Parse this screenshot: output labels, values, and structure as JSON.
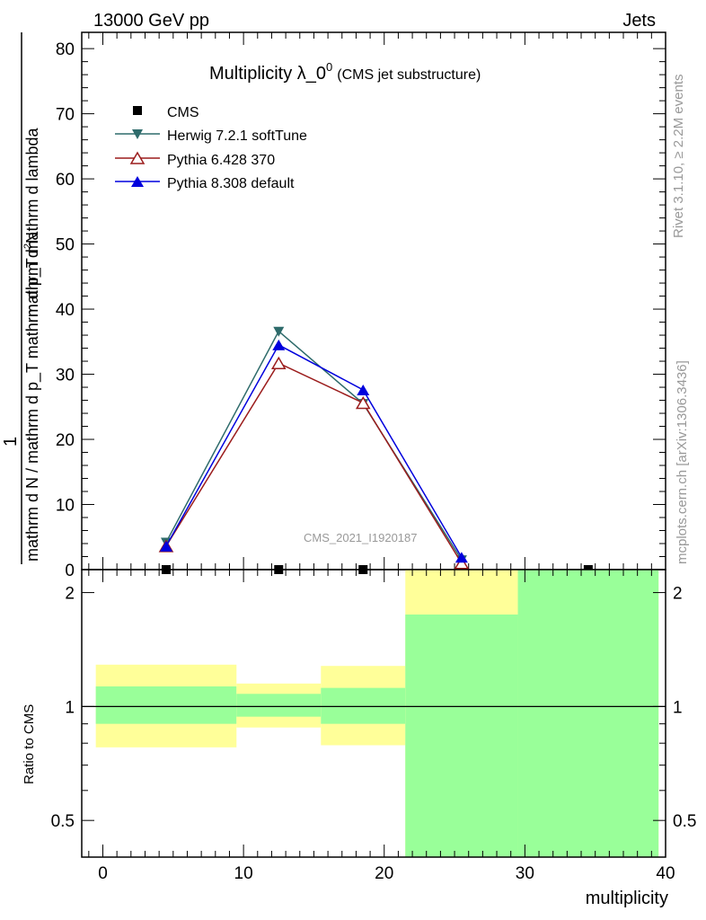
{
  "header": {
    "left": "13000 GeV pp",
    "right": "Jets"
  },
  "title": {
    "main": "Multiplicity λ_0",
    "superscript": "0",
    "sub": "(CMS jet substructure)"
  },
  "side_labels": {
    "rivet": "Rivet 3.1.10, ≥ 2.2M events",
    "mcplots": "mcplots.cern.ch [arXiv:1306.3436]"
  },
  "watermark": "CMS_2021_I1920187",
  "ylabel": {
    "prefix": "1",
    "numerator_small": "mathrm d",
    "numerator_sup": "2",
    "numerator_end": "N",
    "denominator_text": "mathrm d N / mathrm d p_T mathrm d p_T mathrm d lambda"
  },
  "ratio_ylabel": "Ratio to CMS",
  "xlabel": "multiplicity",
  "colors": {
    "herwig": "#2e6b6b",
    "pythia6": "#9b1c1c",
    "pythia8": "#0000dd",
    "band_yellow": "#ffff99",
    "band_green": "#99ff99",
    "cms": "#000000"
  },
  "chart_data": [
    {
      "type": "line",
      "title": "Multiplicity λ_0^0 (CMS jet substructure)",
      "xlim": [
        -1.5,
        40
      ],
      "ylim": [
        0,
        82.5
      ],
      "yticks": [
        0,
        10,
        20,
        30,
        40,
        50,
        60,
        70,
        80
      ],
      "legend_position": "top-left",
      "series": [
        {
          "name": "CMS",
          "marker": "square",
          "x": [
            4.5,
            12.5,
            18.5,
            25.5,
            34.5
          ],
          "y": [
            0,
            0,
            0,
            0,
            0
          ]
        },
        {
          "name": "Herwig 7.2.1 softTune",
          "marker": "triangle-down",
          "x": [
            4.5,
            12.5,
            18.5,
            25.5
          ],
          "y": [
            4.2,
            36.6,
            25.5,
            1.5
          ]
        },
        {
          "name": "Pythia 6.428 370",
          "marker": "triangle-up-open",
          "x": [
            4.5,
            12.5,
            18.5,
            25.5
          ],
          "y": [
            3.6,
            31.7,
            25.6,
            1.0
          ]
        },
        {
          "name": "Pythia 8.308 default",
          "marker": "triangle-up",
          "x": [
            4.5,
            12.5,
            18.5,
            25.5
          ],
          "y": [
            3.6,
            34.5,
            27.6,
            1.9
          ]
        }
      ]
    },
    {
      "type": "area",
      "ylabel": "Ratio to CMS",
      "xlabel": "multiplicity",
      "xlim": [
        -1.5,
        40
      ],
      "ylim": [
        0.4,
        2.3
      ],
      "log_y": true,
      "xticks": [
        0,
        10,
        20,
        30,
        40
      ],
      "yticks": [
        0.5,
        1,
        2
      ],
      "reference_line": 1,
      "bins": [
        {
          "x_low": -0.5,
          "x_high": 9.5,
          "yellow_low": 0.78,
          "yellow_high": 1.29,
          "green_low": 0.9,
          "green_high": 1.13
        },
        {
          "x_low": 9.5,
          "x_high": 15.5,
          "yellow_low": 0.88,
          "yellow_high": 1.15,
          "green_low": 0.94,
          "green_high": 1.08
        },
        {
          "x_low": 15.5,
          "x_high": 21.5,
          "yellow_low": 0.79,
          "yellow_high": 1.28,
          "green_low": 0.9,
          "green_high": 1.12
        },
        {
          "x_low": 21.5,
          "x_high": 29.5,
          "yellow_low": 0.4,
          "yellow_high": 2.3,
          "green_low": 0.4,
          "green_high": 1.75
        },
        {
          "x_low": 29.5,
          "x_high": 39.5,
          "yellow_low": 0.4,
          "yellow_high": 2.3,
          "green_low": 0.4,
          "green_high": 2.3
        }
      ]
    }
  ]
}
